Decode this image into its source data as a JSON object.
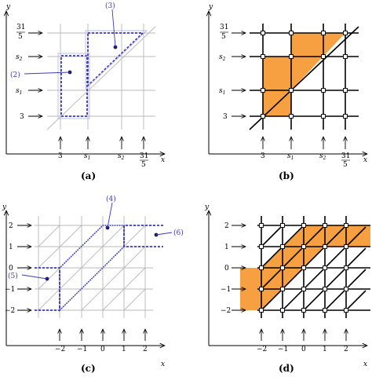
{
  "panels": {
    "a": {
      "caption": "(a)",
      "x_axis_label": "x",
      "y_axis_label": "y",
      "x_ticks": [
        "3",
        "s₁",
        "s₂",
        "31/5"
      ],
      "y_ticks": [
        "31/5",
        "s₂",
        "s₁",
        "3"
      ],
      "annotations": [
        "(2)",
        "(3)"
      ]
    },
    "b": {
      "caption": "(b)",
      "x_axis_label": "x",
      "y_axis_label": "y",
      "x_ticks": [
        "3",
        "s₁",
        "s₂",
        "31/5"
      ],
      "y_ticks": [
        "31/5",
        "s₂",
        "s₁",
        "3"
      ]
    },
    "c": {
      "caption": "(c)",
      "x_axis_label": "x",
      "y_axis_label": "y",
      "x_ticks": [
        "−2",
        "−1",
        "0",
        "1",
        "2"
      ],
      "y_ticks": [
        "2",
        "1",
        "0",
        "−1",
        "−2"
      ],
      "annotations": [
        "(4)",
        "(5)",
        "(6)"
      ]
    },
    "d": {
      "caption": "(d)",
      "x_axis_label": "x",
      "y_axis_label": "y",
      "x_ticks": [
        "−2",
        "−1",
        "0",
        "1",
        "2"
      ],
      "y_ticks": [
        "2",
        "1",
        "0",
        "−1",
        "−2"
      ]
    }
  },
  "colors": {
    "fill": "#f7a042",
    "dashed": "#3a3ab8",
    "grid_light": "#b8b8b8",
    "grid_dark": "#000000"
  }
}
